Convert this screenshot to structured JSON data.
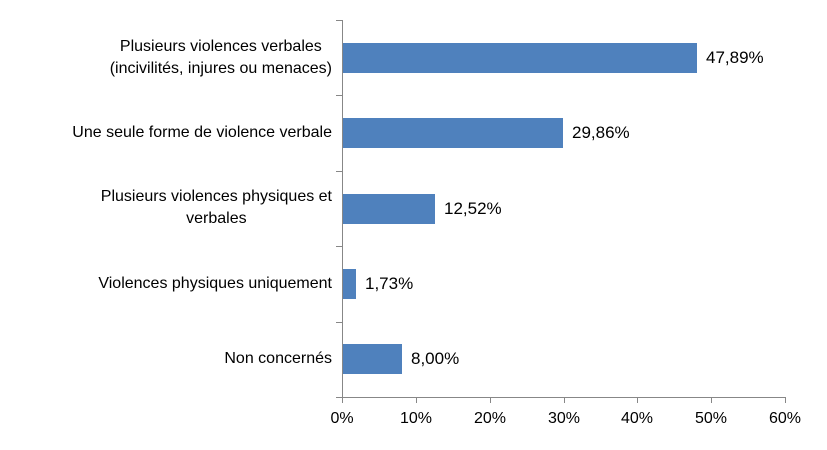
{
  "chart_data": {
    "type": "bar",
    "orientation": "horizontal",
    "title": "",
    "xlabel": "",
    "ylabel": "",
    "grid": false,
    "legend": false,
    "categories": [
      "Plusieurs violences verbales (incivilités, injures ou menaces)",
      "Une seule forme de violence verbale",
      "Plusieurs violences physiques et verbales",
      "Violences physiques uniquement",
      "Non concernés"
    ],
    "category_lines": [
      [
        "Plusieurs violences verbales",
        "(incivilités, injures ou menaces)"
      ],
      [
        "Une seule forme de violence verbale"
      ],
      [
        "Plusieurs violences physiques et",
        "verbales"
      ],
      [
        "Violences physiques uniquement"
      ],
      [
        "Non concernés"
      ]
    ],
    "values": [
      47.89,
      29.86,
      12.52,
      1.73,
      8.0
    ],
    "value_labels": [
      "47,89%",
      "29,86%",
      "12,52%",
      "1,73%",
      "8,00%"
    ],
    "x_ticks_values": [
      0,
      10,
      20,
      30,
      40,
      50,
      60
    ],
    "x_tick_labels": [
      "0%",
      "10%",
      "20%",
      "30%",
      "40%",
      "50%",
      "60%"
    ],
    "xlim": [
      0,
      60
    ],
    "colors": {
      "bar": "#4F81BD",
      "axis": "#878787",
      "text": "#000000",
      "background": "#FFFFFF"
    }
  }
}
